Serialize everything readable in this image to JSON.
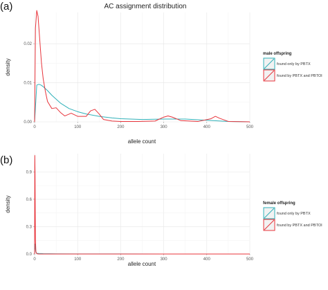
{
  "chart_data": [
    {
      "panel_label": "(a)",
      "type": "line",
      "title": "AC assignment distribution",
      "xlabel": "allele count",
      "ylabel": "density",
      "xlim": [
        0,
        500
      ],
      "ylim": [
        0,
        0.028
      ],
      "x_ticks": [
        "0",
        "100",
        "200",
        "300",
        "400",
        "500"
      ],
      "y_ticks": [
        "0.00",
        "0.01",
        "0.02"
      ],
      "grid": true,
      "legend": {
        "title": "male offspring",
        "position": "right",
        "entries": [
          "found only by PBTX",
          "found by PBTX and PBTOI"
        ]
      },
      "series": [
        {
          "name": "found only by PBTX",
          "color": "#2fb0b8",
          "x": [
            0,
            5,
            10,
            15,
            20,
            30,
            40,
            60,
            80,
            100,
            120,
            150,
            180,
            200,
            250,
            300,
            350,
            400,
            450,
            500
          ],
          "y": [
            0.0,
            0.0094,
            0.0096,
            0.0094,
            0.009,
            0.008,
            0.0068,
            0.0048,
            0.0034,
            0.0026,
            0.002,
            0.0014,
            0.001,
            0.0008,
            0.0006,
            0.0007,
            0.0007,
            0.0004,
            0.0001,
            0.0
          ]
        },
        {
          "name": "found by PBTX and PBTOI",
          "color": "#e8333a",
          "x": [
            0,
            2,
            5,
            8,
            12,
            16,
            20,
            25,
            30,
            40,
            50,
            60,
            70,
            85,
            100,
            120,
            130,
            140,
            150,
            160,
            180,
            200,
            240,
            280,
            300,
            310,
            320,
            340,
            380,
            410,
            420,
            430,
            450,
            500
          ],
          "y": [
            0.0,
            0.024,
            0.0285,
            0.027,
            0.021,
            0.015,
            0.011,
            0.0078,
            0.0052,
            0.0034,
            0.0036,
            0.0024,
            0.0015,
            0.0022,
            0.0014,
            0.0014,
            0.0028,
            0.0032,
            0.002,
            0.0006,
            0.0002,
            0.0001,
            0.0001,
            0.0002,
            0.0012,
            0.0015,
            0.0012,
            0.0003,
            0.0001,
            0.0008,
            0.0014,
            0.0009,
            0.0001,
            0.0
          ]
        }
      ]
    },
    {
      "panel_label": "(b)",
      "type": "line",
      "title": "",
      "xlabel": "allele count",
      "ylabel": "density",
      "xlim": [
        0,
        500
      ],
      "ylim": [
        0,
        1.1
      ],
      "x_ticks": [
        "0",
        "100",
        "200",
        "300",
        "400",
        "500"
      ],
      "y_ticks": [
        "0.0",
        "0.3",
        "0.6",
        "0.9"
      ],
      "grid": true,
      "legend": {
        "title": "female offspring",
        "position": "right",
        "entries": [
          "found only by PBTX",
          "found by PBTX and PBTOI"
        ]
      },
      "series": [
        {
          "name": "found only by PBTX",
          "color": "#2fb0b8",
          "x": [
            0,
            1,
            2,
            3,
            5,
            10,
            20,
            50,
            100,
            200,
            300,
            400,
            500
          ],
          "y": [
            0.0,
            0.11,
            0.06,
            0.02,
            0.008,
            0.006,
            0.004,
            0.002,
            0.001,
            0.0005,
            0.0003,
            0.0001,
            0.0
          ]
        },
        {
          "name": "found by PBTX and PBTOI",
          "color": "#e8333a",
          "x": [
            0,
            0.5,
            1,
            1.5,
            2,
            3,
            4,
            6,
            10,
            500
          ],
          "y": [
            0.0,
            1.08,
            0.9,
            0.45,
            0.15,
            0.03,
            0.01,
            0.002,
            0.0,
            0.0
          ]
        }
      ]
    }
  ]
}
